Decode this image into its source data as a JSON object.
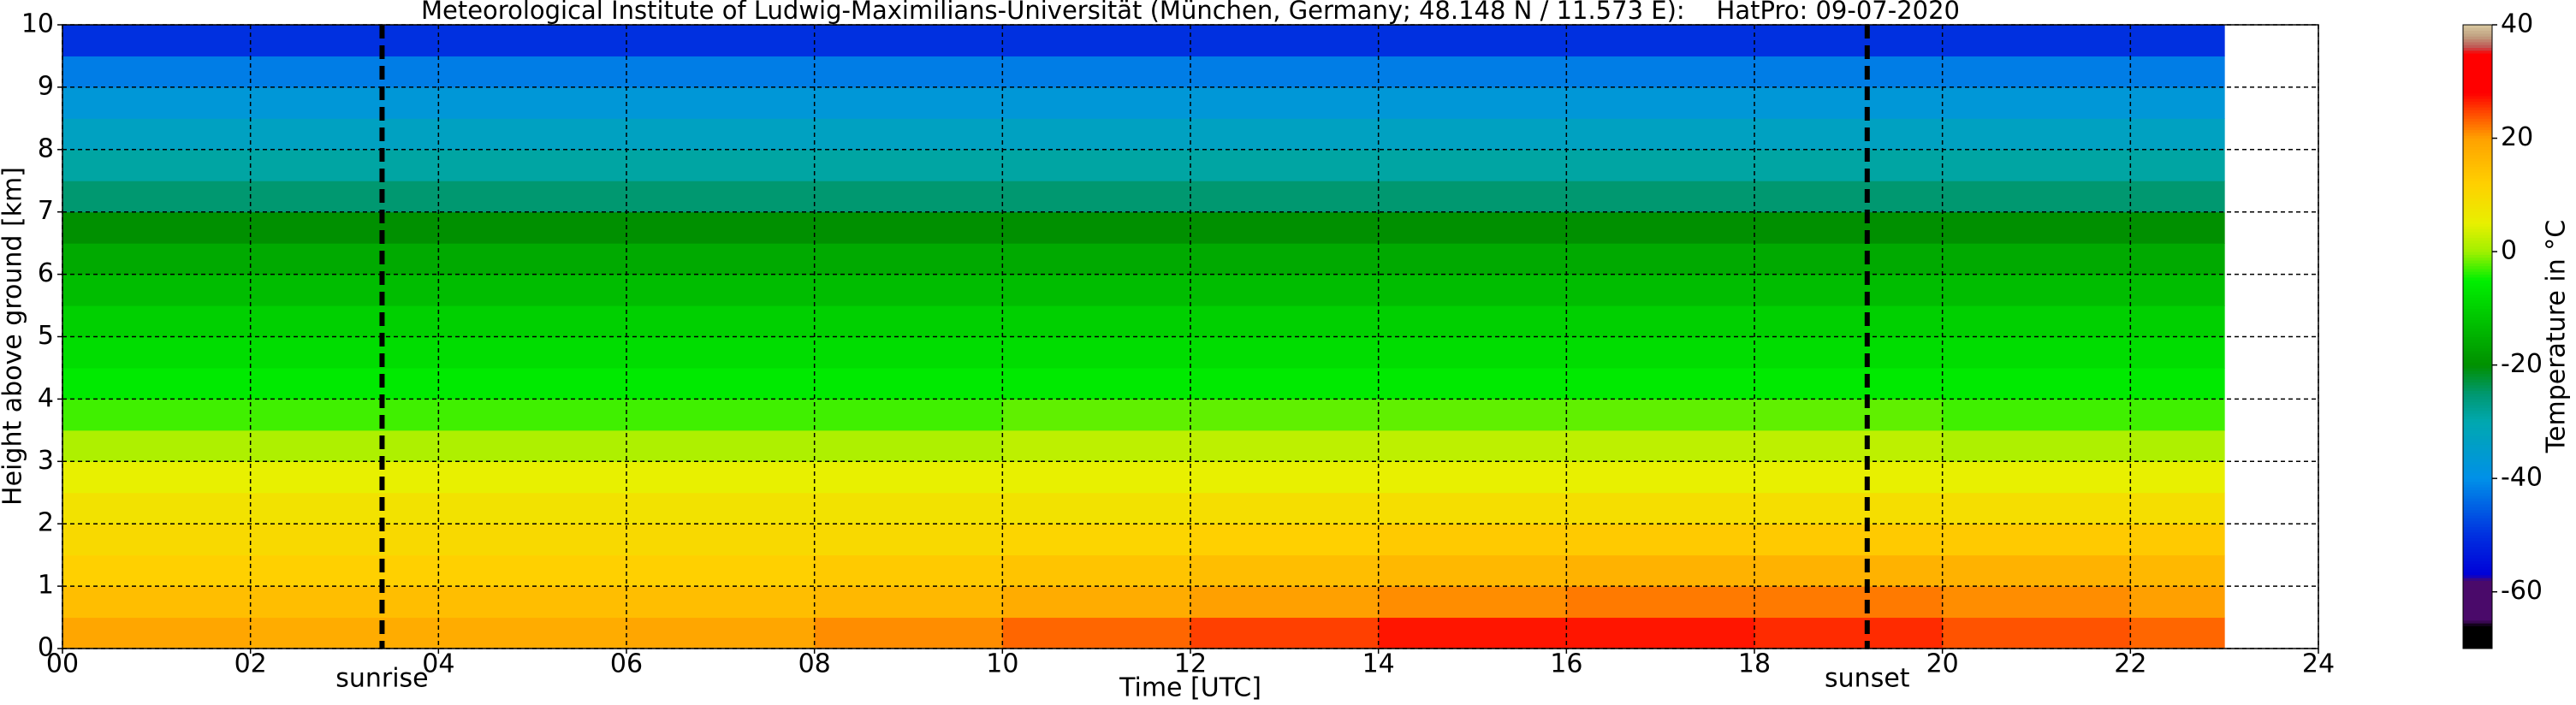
{
  "chart_data": {
    "type": "heatmap",
    "title": "Meteorological Institute of Ludwig-Maximilians-Universität (München, Germany; 48.148 N / 11.573 E):    HatPro: 09-07-2020",
    "xlabel": "Time [UTC]",
    "ylabel": "Height above ground [km]",
    "colorbar_label": "Temperature in °C",
    "x_edges": [
      0,
      2,
      4,
      6,
      8,
      10,
      12,
      14,
      16,
      18,
      20,
      22,
      23
    ],
    "y_edges": [
      0,
      0.5,
      1,
      1.5,
      2,
      2.5,
      3,
      3.5,
      4,
      4.5,
      5,
      5.5,
      6,
      6.5,
      7,
      7.5,
      8,
      8.5,
      9,
      9.5,
      10
    ],
    "values": [
      [
        19,
        18,
        18,
        19,
        21,
        23,
        25,
        27,
        27,
        26,
        24,
        23
      ],
      [
        15,
        15,
        15,
        15,
        16,
        18,
        20,
        21,
        22,
        22,
        21,
        20
      ],
      [
        12,
        12,
        12,
        12,
        13,
        14,
        15,
        16,
        17,
        17,
        17,
        16
      ],
      [
        10,
        10,
        10,
        10,
        10,
        11,
        12,
        13,
        13,
        13,
        13,
        13
      ],
      [
        8,
        8,
        8,
        8,
        8,
        8,
        9,
        9,
        9,
        9,
        9,
        9
      ],
      [
        5,
        5,
        5,
        5,
        5,
        5,
        5,
        5,
        5,
        5,
        5,
        5
      ],
      [
        1,
        1,
        1,
        1,
        1,
        2,
        2,
        2,
        2,
        2,
        1,
        1
      ],
      [
        -3,
        -3,
        -3,
        -3,
        -3,
        -2,
        -2,
        -2,
        -2,
        -2,
        -3,
        -3
      ],
      [
        -6,
        -6,
        -6,
        -6,
        -6,
        -6,
        -6,
        -6,
        -6,
        -6,
        -6,
        -6
      ],
      [
        -8,
        -8,
        -8,
        -8,
        -8,
        -8,
        -8,
        -8,
        -8,
        -8,
        -8,
        -8
      ],
      [
        -10,
        -10,
        -10,
        -10,
        -10,
        -10,
        -10,
        -10,
        -10,
        -10,
        -10,
        -10
      ],
      [
        -13,
        -13,
        -13,
        -13,
        -13,
        -13,
        -13,
        -13,
        -13,
        -13,
        -13,
        -13
      ],
      [
        -16,
        -16,
        -16,
        -16,
        -16,
        -16,
        -16,
        -16,
        -16,
        -16,
        -16,
        -16
      ],
      [
        -20,
        -20,
        -20,
        -20,
        -20,
        -20,
        -20,
        -20,
        -20,
        -20,
        -20,
        -20
      ],
      [
        -25,
        -25,
        -25,
        -25,
        -25,
        -25,
        -25,
        -25,
        -25,
        -25,
        -25,
        -25
      ],
      [
        -29,
        -29,
        -29,
        -29,
        -29,
        -29,
        -29,
        -29,
        -29,
        -29,
        -29,
        -29
      ],
      [
        -33,
        -33,
        -33,
        -33,
        -33,
        -33,
        -33,
        -33,
        -33,
        -33,
        -33,
        -33
      ],
      [
        -37,
        -37,
        -37,
        -37,
        -37,
        -37,
        -37,
        -37,
        -37,
        -37,
        -37,
        -37
      ],
      [
        -42,
        -42,
        -42,
        -42,
        -42,
        -42,
        -42,
        -42,
        -42,
        -42,
        -42,
        -42
      ],
      [
        -50,
        -50,
        -50,
        -50,
        -50,
        -50,
        -50,
        -50,
        -50,
        -50,
        -50,
        -50
      ]
    ],
    "xlim": [
      0,
      24
    ],
    "xticks": [
      {
        "value": 0,
        "label": "00"
      },
      {
        "value": 2,
        "label": "02"
      },
      {
        "value": 4,
        "label": "04"
      },
      {
        "value": 6,
        "label": "06"
      },
      {
        "value": 8,
        "label": "08"
      },
      10,
      12,
      14,
      16,
      18,
      20,
      22,
      24
    ],
    "ylim": [
      0,
      10
    ],
    "yticks": [
      0,
      1,
      2,
      3,
      4,
      5,
      6,
      7,
      8,
      9,
      10
    ],
    "zlim": [
      -70,
      40
    ],
    "zticks": [
      -60,
      -40,
      -20,
      0,
      20,
      40
    ],
    "grid": true,
    "colorscale": [
      [
        -70,
        "#000000"
      ],
      [
        -66,
        "#000000"
      ],
      [
        -65,
        "#4a0a6a"
      ],
      [
        -58,
        "#4a0a6a"
      ],
      [
        -57,
        "#0000d8"
      ],
      [
        -50,
        "#0030e0"
      ],
      [
        -40,
        "#0090e8"
      ],
      [
        -30,
        "#00a8b0"
      ],
      [
        -25,
        "#009870"
      ],
      [
        -20,
        "#009000"
      ],
      [
        -10,
        "#00d000"
      ],
      [
        -5,
        "#00f000"
      ],
      [
        0,
        "#a0f000"
      ],
      [
        5,
        "#e8f000"
      ],
      [
        12,
        "#ffd000"
      ],
      [
        20,
        "#ffa000"
      ],
      [
        25,
        "#ff4000"
      ],
      [
        28,
        "#ff0000"
      ],
      [
        35,
        "#ff0000"
      ],
      [
        36,
        "#c05050"
      ],
      [
        38,
        "#c0a080"
      ],
      [
        40,
        "#d8c8a0"
      ]
    ],
    "annotations": [
      {
        "label": "sunrise",
        "x": 3.4
      },
      {
        "label": "sunset",
        "x": 19.2
      }
    ]
  }
}
